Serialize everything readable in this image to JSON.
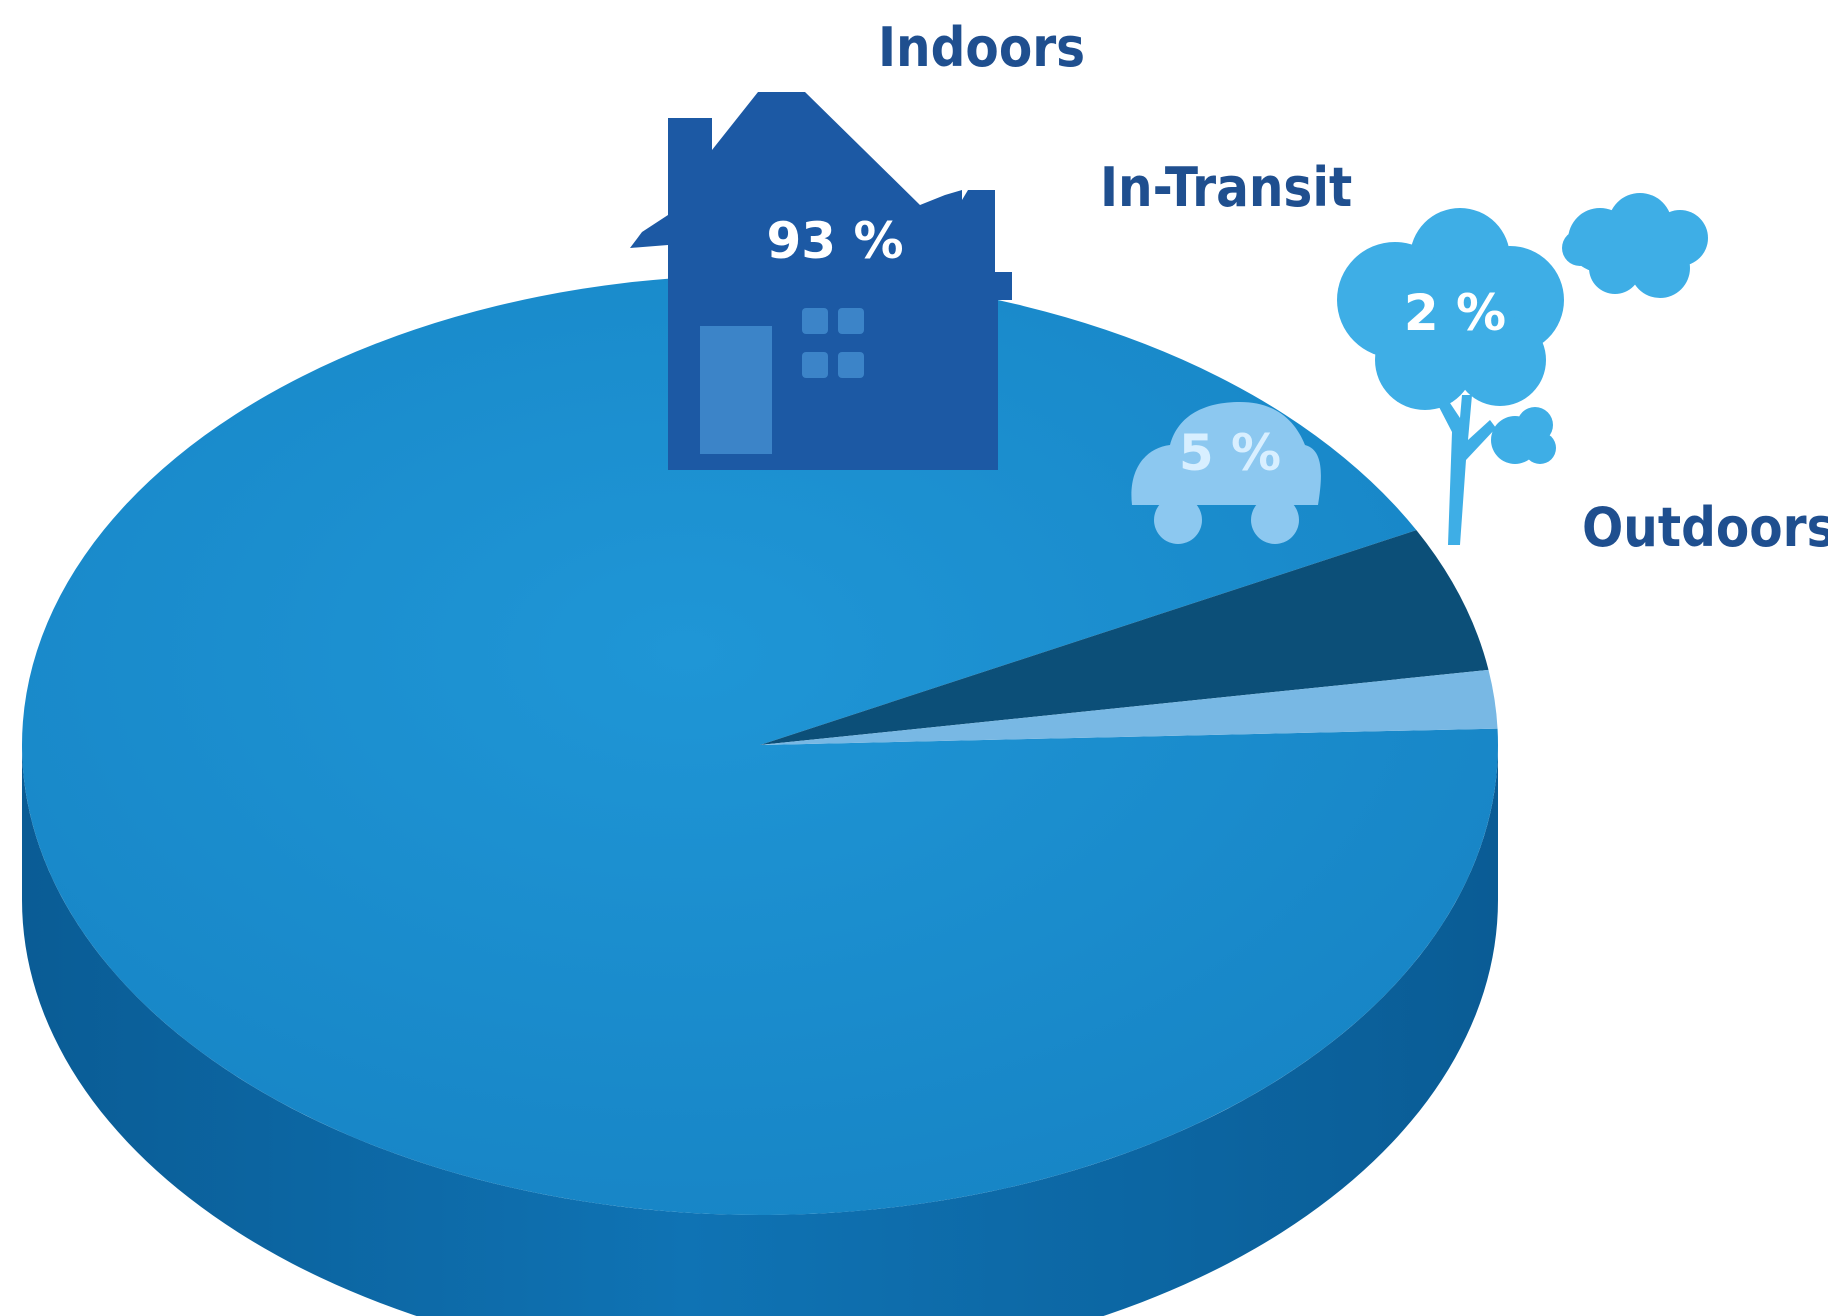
{
  "chart_data": {
    "type": "pie",
    "style": "3d",
    "categories": [
      "Indoors",
      "In-Transit",
      "Outdoors"
    ],
    "values": [
      93,
      5,
      2
    ],
    "value_labels": [
      "93 %",
      "5 %",
      "2 %"
    ],
    "icons": [
      "house-icon",
      "car-icon",
      "tree-icon"
    ],
    "title": "",
    "legend": "none",
    "colors": {
      "indoors_top": "#1b8fd0",
      "indoors_side": "#0d6aa8",
      "in_transit": "#0c4f78",
      "outdoors": "#78b8e4",
      "house": "#1c59a4",
      "car": "#8cc8f0",
      "tree": "#3eaee6",
      "category_text": "#1f4f8f",
      "value_text": "#ffffff"
    }
  }
}
